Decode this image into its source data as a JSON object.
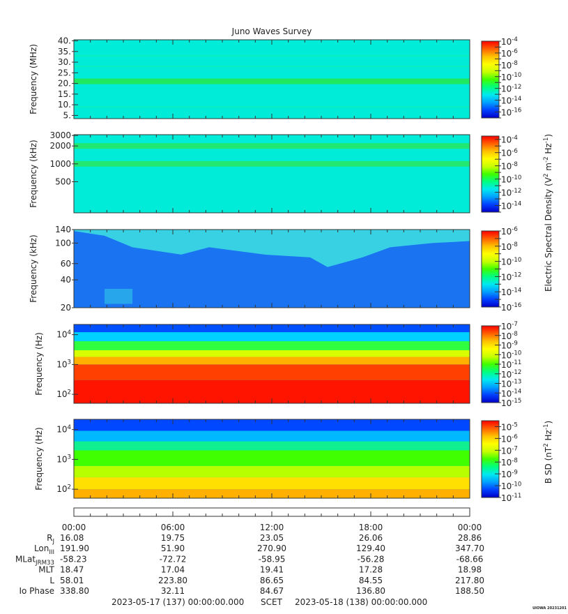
{
  "title": "Juno Waves Survey",
  "credit": "UIOWA 20231201",
  "colorbar_labels": {
    "electric": "Electric Spectral Density (V{sup:2} m{sup:-2} Hz{sup:-1})",
    "magnetic": "B SD (nT{sup:2} Hz{sup:-1})"
  },
  "chart_data": [
    {
      "type": "heatmap",
      "ylabel": "Frequency (MHz)",
      "y_scale": "linear",
      "ylim": [
        3.5,
        40.5
      ],
      "yticks": [
        "5.",
        "10.",
        "15.",
        "20.",
        "25.",
        "30.",
        "35.",
        "40."
      ],
      "ytick_values": [
        5,
        10,
        15,
        20,
        25,
        30,
        35,
        40
      ],
      "colorbar": {
        "scale": "log",
        "exp_range": [
          -17,
          -4
        ],
        "labels": [
          "-4",
          "-6",
          "-8",
          "-10",
          "-12",
          "-14",
          "-16"
        ],
        "label_exps": [
          -4,
          -6,
          -8,
          -10,
          -12,
          -14,
          -16
        ]
      },
      "description": "nearly uniform background ~1e-13 with a brighter band near 21 MHz"
    },
    {
      "type": "heatmap",
      "ylabel": "Frequency (kHz)",
      "y_scale": "log",
      "ylim": [
        150,
        3100
      ],
      "yticks": [
        "3000",
        "2000",
        "1000",
        "500"
      ],
      "ytick_values": [
        3000,
        2000,
        1000,
        500
      ],
      "colorbar": {
        "scale": "log",
        "exp_range": [
          -15,
          -3.5
        ],
        "labels": [
          "-4",
          "-6",
          "-8",
          "-10",
          "-12",
          "-14"
        ],
        "label_exps": [
          -4,
          -6,
          -8,
          -10,
          -12,
          -14
        ]
      },
      "description": "uniform background with brighter bands near 2000 kHz and 1000 kHz"
    },
    {
      "type": "heatmap",
      "ylabel": "Frequency (kHz)",
      "y_scale": "log",
      "ylim": [
        20,
        140
      ],
      "yticks": [
        "140",
        "100",
        "60",
        "40",
        "20"
      ],
      "ytick_values": [
        140,
        100,
        60,
        40,
        20
      ],
      "colorbar": {
        "scale": "log",
        "exp_range": [
          -16,
          -6
        ],
        "labels": [
          "-6",
          "-8",
          "-10",
          "-12",
          "-14",
          "-16"
        ],
        "label_exps": [
          -6,
          -8,
          -10,
          -12,
          -14,
          -16
        ]
      },
      "description": "blue background with lighter cyan emission regions at upper frequencies"
    },
    {
      "type": "heatmap",
      "ylabel": "Frequency (Hz)",
      "y_scale": "log",
      "ylim": [
        50,
        22000
      ],
      "yticks": [
        "10{sup:4}",
        "10{sup:3}",
        "10{sup:2}"
      ],
      "ytick_values": [
        10000,
        1000,
        100
      ],
      "colorbar": {
        "scale": "log",
        "exp_range": [
          -15,
          -7
        ],
        "labels": [
          "-7",
          "-8",
          "-9",
          "-10",
          "-11",
          "-12",
          "-13",
          "-14",
          "-15"
        ],
        "label_exps": [
          -7,
          -8,
          -9,
          -10,
          -11,
          -12,
          -13,
          -14,
          -15
        ]
      },
      "description": "intense red emission below ~2 kHz fading through yellow/green to blue near 20 kHz"
    },
    {
      "type": "heatmap",
      "ylabel": "Frequency (Hz)",
      "y_scale": "log",
      "ylim": [
        50,
        22000
      ],
      "yticks": [
        "10{sup:4}",
        "10{sup:3}",
        "10{sup:2}"
      ],
      "ytick_values": [
        10000,
        1000,
        100
      ],
      "colorbar": {
        "scale": "log",
        "exp_range": [
          -11,
          -4.5
        ],
        "labels": [
          "-5",
          "-6",
          "-7",
          "-8",
          "-9",
          "-10",
          "-11"
        ],
        "label_exps": [
          -5,
          -6,
          -7,
          -8,
          -9,
          -10,
          -11
        ]
      },
      "description": "yellow/orange below ~200 Hz, green to ~3 kHz, blue above"
    }
  ],
  "ephemeris": {
    "time_ticks": [
      "00:00",
      "06:00",
      "12:00",
      "18:00",
      "00:00"
    ],
    "time_hours": [
      0,
      6,
      12,
      18,
      24
    ],
    "rows": [
      {
        "label": "R",
        "sub": "J",
        "values": [
          "16.08",
          "19.75",
          "23.05",
          "26.06",
          "28.86"
        ]
      },
      {
        "label": "Lon",
        "sub": "III",
        "values": [
          "191.90",
          "51.90",
          "270.90",
          "129.40",
          "347.70"
        ]
      },
      {
        "label": "MLat",
        "sub": "JRM33",
        "values": [
          "-58.23",
          "-72.72",
          "-58.95",
          "-56.28",
          "-68.66"
        ]
      },
      {
        "label": "MLT",
        "sub": "",
        "values": [
          "18.47",
          "17.04",
          "19.41",
          "17.28",
          "18.98"
        ]
      },
      {
        "label": "L",
        "sub": "",
        "values": [
          "58.01",
          "223.80",
          "86.65",
          "84.55",
          "217.80"
        ]
      },
      {
        "label": "Io Phase",
        "sub": "",
        "values": [
          "338.80",
          "32.11",
          "84.67",
          "136.80",
          "188.50"
        ]
      }
    ],
    "footer": {
      "start": "2023-05-17 (137) 00:00:00.000",
      "mid": "SCET",
      "end": "2023-05-18 (138) 00:00:00.000"
    }
  },
  "colors": {
    "colormap": [
      "#0000c8",
      "#0040ff",
      "#00a0ff",
      "#00e8f0",
      "#00ff80",
      "#40ff00",
      "#c8ff00",
      "#ffff00",
      "#ffc000",
      "#ff6000",
      "#ff0000"
    ]
  }
}
